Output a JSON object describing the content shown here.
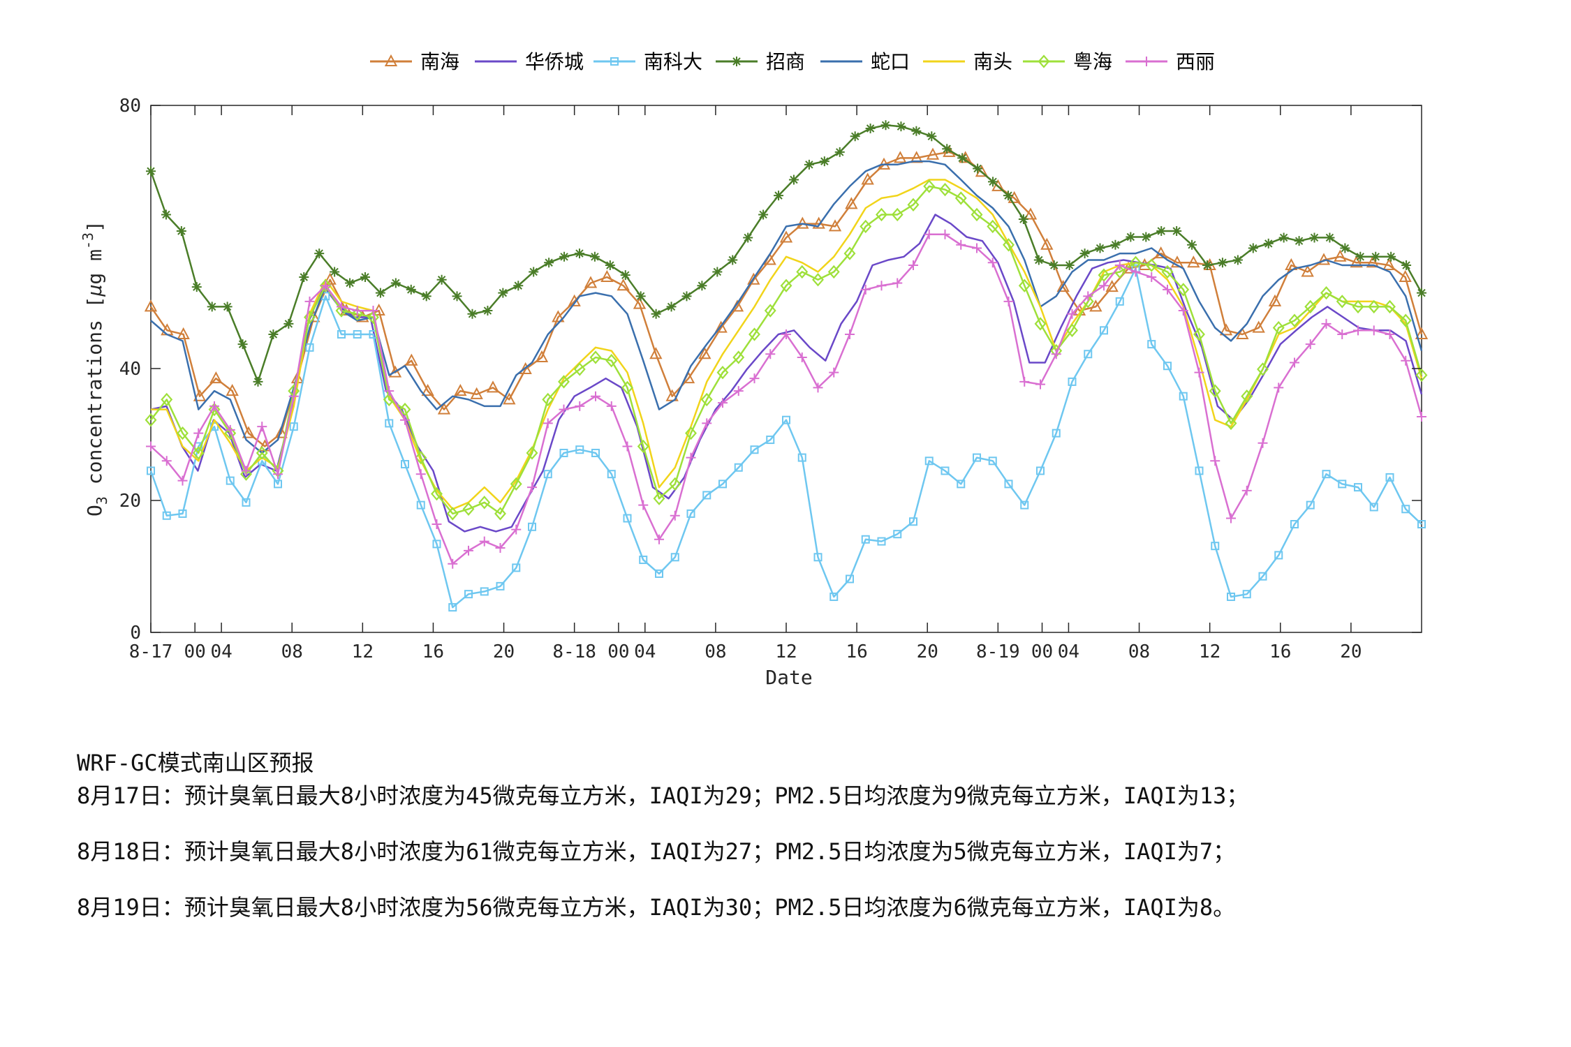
{
  "chart_data": {
    "type": "line",
    "title": "",
    "xlabel": "Date",
    "ylabel": "O3 concentrations [μg m-3]",
    "ylabel_parts": {
      "main": "O",
      "sub": "3",
      "mid": " concentrations [",
      "mu": "μ",
      "unit": "g m",
      "sup": "-3",
      "end": "]"
    },
    "ylim": [
      0,
      80
    ],
    "yticks": [
      0,
      20,
      40,
      80
    ],
    "ytick_labels": [
      "0",
      "20",
      "40",
      "80"
    ],
    "hours": 72,
    "xticks": [
      {
        "hour": 0,
        "label": "8-17"
      },
      {
        "hour": 2.5,
        "label": "00"
      },
      {
        "hour": 4,
        "label": "04"
      },
      {
        "hour": 8,
        "label": "08"
      },
      {
        "hour": 12,
        "label": "12"
      },
      {
        "hour": 16,
        "label": "16"
      },
      {
        "hour": 20,
        "label": "20"
      },
      {
        "hour": 24,
        "label": "8-18"
      },
      {
        "hour": 26.5,
        "label": "00"
      },
      {
        "hour": 28,
        "label": "04"
      },
      {
        "hour": 32,
        "label": "08"
      },
      {
        "hour": 36,
        "label": "12"
      },
      {
        "hour": 40,
        "label": "16"
      },
      {
        "hour": 44,
        "label": "20"
      },
      {
        "hour": 48,
        "label": "8-19"
      },
      {
        "hour": 50.5,
        "label": "00"
      },
      {
        "hour": 52,
        "label": "04"
      },
      {
        "hour": 56,
        "label": "08"
      },
      {
        "hour": 60,
        "label": "12"
      },
      {
        "hour": 64,
        "label": "16"
      },
      {
        "hour": 68,
        "label": "20"
      }
    ],
    "series": [
      {
        "name": "南海",
        "color": "#d07f3a",
        "marker": "triangle",
        "values": [
          49.4,
          45.8,
          45.2,
          35.8,
          38.5,
          36.6,
          30.2,
          28.2,
          30.2,
          38.5,
          47.8,
          53.5,
          48.8,
          47.8,
          48.8,
          39.4,
          41.2,
          36.6,
          33.8,
          36.6,
          36.1,
          37.1,
          35.3,
          39.9,
          41.7,
          47.8,
          50.2,
          53.0,
          53.9,
          52.6,
          49.8,
          42.2,
          35.8,
          38.5,
          42.2,
          46.2,
          49.4,
          53.5,
          56.5,
          59.9,
          62.0,
          62.0,
          61.6,
          65.0,
          68.7,
          71.0,
          72.0,
          72.0,
          72.5,
          72.9,
          72.0,
          69.9,
          67.7,
          65.9,
          63.4,
          58.8,
          52.4,
          48.8,
          49.4,
          52.4,
          55.2,
          55.7,
          57.5,
          56.1,
          56.1,
          55.7,
          45.8,
          45.2,
          46.2,
          50.2,
          55.7,
          54.7,
          56.5,
          57.0,
          56.1,
          56.1,
          55.7,
          53.9,
          45.2
        ]
      },
      {
        "name": "华侨城",
        "color": "#6a48c8",
        "marker": "none",
        "values": [
          33.8,
          34.3,
          28.2,
          24.5,
          32.2,
          30.2,
          23.5,
          25.5,
          24.5,
          33.8,
          46.8,
          52.6,
          49.4,
          47.8,
          47.8,
          36.6,
          33.8,
          28.2,
          24.5,
          16.8,
          15.3,
          16.0,
          15.3,
          16.0,
          20.3,
          24.5,
          32.2,
          35.8,
          37.1,
          38.5,
          37.1,
          31.2,
          22.0,
          20.3,
          23.5,
          29.2,
          33.8,
          36.6,
          39.9,
          42.7,
          45.2,
          45.8,
          43.2,
          41.2,
          46.8,
          50.2,
          55.7,
          56.5,
          57.0,
          59.0,
          63.4,
          62.0,
          60.0,
          59.4,
          56.1,
          50.2,
          40.9,
          40.9,
          46.2,
          51.0,
          55.2,
          56.1,
          56.5,
          56.1,
          55.7,
          55.2,
          48.8,
          43.2,
          34.3,
          32.2,
          35.3,
          39.4,
          43.7,
          45.8,
          47.8,
          49.4,
          47.8,
          46.2,
          45.8,
          45.8,
          44.2,
          36.1
        ]
      },
      {
        "name": "南科大",
        "color": "#6ec7f0",
        "marker": "square",
        "values": [
          24.5,
          17.7,
          18.0,
          28.2,
          31.2,
          23.0,
          19.7,
          26.0,
          22.5,
          31.2,
          43.2,
          51.0,
          45.2,
          45.2,
          45.2,
          31.7,
          25.5,
          19.3,
          13.4,
          3.8,
          5.8,
          6.2,
          7.0,
          9.8,
          16.0,
          24.0,
          27.2,
          27.7,
          27.2,
          24.0,
          17.3,
          11.0,
          8.9,
          11.4,
          18.0,
          20.8,
          22.5,
          25.0,
          27.7,
          29.2,
          32.2,
          26.5,
          11.4,
          5.4,
          8.1,
          14.1,
          13.8,
          14.9,
          16.8,
          26.0,
          24.5,
          22.5,
          26.5,
          26.0,
          22.5,
          19.3,
          24.5,
          30.2,
          38.0,
          42.2,
          45.8,
          50.2,
          55.2,
          43.7,
          40.4,
          35.8,
          24.5,
          13.1,
          5.4,
          5.8,
          8.5,
          11.7,
          16.4,
          19.3,
          24.0,
          22.5,
          22.0,
          19.0,
          23.5,
          18.7,
          16.4
        ]
      },
      {
        "name": "招商",
        "color": "#4a7d28",
        "marker": "star",
        "values": [
          70.0,
          63.4,
          60.9,
          52.4,
          49.4,
          49.4,
          43.7,
          38.0,
          45.2,
          46.8,
          53.9,
          57.5,
          54.7,
          53.0,
          53.9,
          51.5,
          53.0,
          52.0,
          51.0,
          53.5,
          51.0,
          48.3,
          48.8,
          51.5,
          52.6,
          54.7,
          56.1,
          57.0,
          57.5,
          57.0,
          55.7,
          54.2,
          51.0,
          48.3,
          49.4,
          51.0,
          52.6,
          54.7,
          56.5,
          59.9,
          63.4,
          66.3,
          68.7,
          71.0,
          71.5,
          72.9,
          75.3,
          76.5,
          77.0,
          76.8,
          76.1,
          75.3,
          73.4,
          72.0,
          70.4,
          68.4,
          66.3,
          62.7,
          56.5,
          55.7,
          55.7,
          57.5,
          58.3,
          58.8,
          60.0,
          60.0,
          60.9,
          60.9,
          58.8,
          55.7,
          56.1,
          56.5,
          58.3,
          59.0,
          59.9,
          59.4,
          59.9,
          59.9,
          58.3,
          57.0,
          57.0,
          57.0,
          55.7,
          51.5
        ]
      },
      {
        "name": "蛇口",
        "color": "#3a6fad",
        "marker": "none",
        "values": [
          47.3,
          45.2,
          44.2,
          33.8,
          36.6,
          35.3,
          29.2,
          27.2,
          29.2,
          37.1,
          46.2,
          52.6,
          48.8,
          47.3,
          47.8,
          39.0,
          40.4,
          36.6,
          33.8,
          35.8,
          35.3,
          34.3,
          34.3,
          39.0,
          40.9,
          45.2,
          47.8,
          51.0,
          51.5,
          51.0,
          48.3,
          41.2,
          33.8,
          35.3,
          40.4,
          43.7,
          46.8,
          50.2,
          53.9,
          57.5,
          61.6,
          62.0,
          61.6,
          65.0,
          67.7,
          70.0,
          71.0,
          71.0,
          71.5,
          71.5,
          71.0,
          68.7,
          66.3,
          64.4,
          61.6,
          56.5,
          49.4,
          51.0,
          54.7,
          56.5,
          56.5,
          57.5,
          57.5,
          58.3,
          56.5,
          55.2,
          50.2,
          46.2,
          44.2,
          46.8,
          51.0,
          53.5,
          55.2,
          55.7,
          56.5,
          55.7,
          55.7,
          55.7,
          54.7,
          51.0,
          42.7
        ]
      },
      {
        "name": "南头",
        "color": "#f1d41a",
        "marker": "none",
        "values": [
          33.8,
          33.8,
          28.2,
          26.0,
          32.2,
          28.7,
          24.5,
          26.5,
          25.0,
          34.3,
          48.3,
          53.5,
          50.2,
          49.4,
          48.8,
          35.8,
          32.2,
          26.0,
          21.5,
          18.7,
          19.7,
          22.0,
          19.7,
          23.0,
          27.7,
          33.8,
          38.5,
          40.9,
          43.2,
          42.7,
          39.4,
          31.7,
          22.0,
          25.0,
          31.2,
          38.0,
          42.2,
          45.8,
          49.4,
          53.5,
          57.0,
          56.1,
          54.7,
          57.0,
          60.4,
          64.4,
          65.9,
          66.3,
          67.4,
          68.7,
          68.7,
          67.4,
          65.9,
          63.4,
          59.0,
          54.7,
          49.4,
          42.7,
          46.8,
          50.2,
          54.7,
          55.7,
          56.1,
          55.7,
          53.5,
          49.4,
          41.2,
          32.2,
          31.2,
          35.3,
          39.9,
          45.2,
          46.2,
          48.8,
          51.5,
          50.2,
          50.2,
          50.2,
          49.4,
          46.8,
          38.5
        ]
      },
      {
        "name": "粤海",
        "color": "#9ee03a",
        "marker": "diamond",
        "values": [
          32.2,
          35.3,
          30.2,
          27.2,
          33.8,
          30.2,
          24.0,
          27.2,
          24.5,
          36.6,
          47.8,
          52.6,
          48.8,
          48.3,
          47.8,
          35.3,
          33.8,
          26.5,
          21.0,
          18.0,
          18.7,
          19.7,
          18.0,
          22.5,
          27.2,
          35.3,
          38.0,
          39.9,
          41.7,
          41.2,
          37.1,
          28.2,
          20.3,
          22.5,
          30.2,
          35.3,
          39.4,
          41.7,
          45.2,
          48.8,
          52.6,
          54.7,
          53.5,
          54.7,
          57.5,
          61.6,
          63.4,
          63.4,
          64.9,
          67.7,
          67.2,
          65.9,
          63.4,
          61.6,
          58.8,
          52.6,
          46.8,
          42.7,
          45.8,
          50.2,
          54.2,
          54.7,
          56.1,
          55.7,
          54.7,
          52.0,
          45.2,
          36.6,
          31.7,
          35.8,
          39.9,
          46.2,
          47.3,
          49.4,
          51.5,
          50.2,
          49.4,
          49.4,
          49.4,
          47.3,
          39.0
        ]
      },
      {
        "name": "西丽",
        "color": "#d96fd1",
        "marker": "plus",
        "values": [
          28.2,
          26.0,
          23.0,
          30.2,
          34.3,
          30.7,
          24.5,
          31.2,
          24.0,
          35.8,
          50.2,
          52.6,
          49.4,
          48.8,
          48.8,
          36.6,
          32.2,
          24.0,
          16.4,
          10.4,
          12.4,
          13.8,
          12.8,
          15.6,
          22.0,
          31.7,
          33.8,
          34.3,
          35.8,
          34.3,
          28.2,
          19.3,
          14.1,
          17.7,
          26.5,
          31.7,
          34.8,
          36.6,
          38.5,
          42.2,
          45.2,
          41.7,
          37.1,
          39.4,
          45.2,
          52.0,
          52.6,
          53.0,
          55.7,
          60.4,
          60.4,
          58.8,
          58.3,
          56.1,
          50.2,
          38.0,
          37.6,
          42.2,
          48.3,
          51.0,
          52.6,
          55.7,
          54.7,
          53.9,
          52.0,
          48.8,
          39.4,
          26.0,
          17.3,
          21.5,
          28.7,
          37.1,
          40.9,
          43.7,
          46.8,
          45.2,
          45.8,
          45.8,
          45.2,
          41.2,
          32.7
        ]
      }
    ]
  },
  "forecast": {
    "title": "WRF-GC模式南山区预报",
    "lines": [
      "8月17日：预计臭氧日最大8小时浓度为45微克每立方米，IAQI为29；PM2.5日均浓度为9微克每立方米，IAQI为13；",
      "8月18日：预计臭氧日最大8小时浓度为61微克每立方米，IAQI为27；PM2.5日均浓度为5微克每立方米，IAQI为7；",
      "8月19日：预计臭氧日最大8小时浓度为56微克每立方米，IAQI为30；PM2.5日均浓度为6微克每立方米，IAQI为8。"
    ]
  }
}
